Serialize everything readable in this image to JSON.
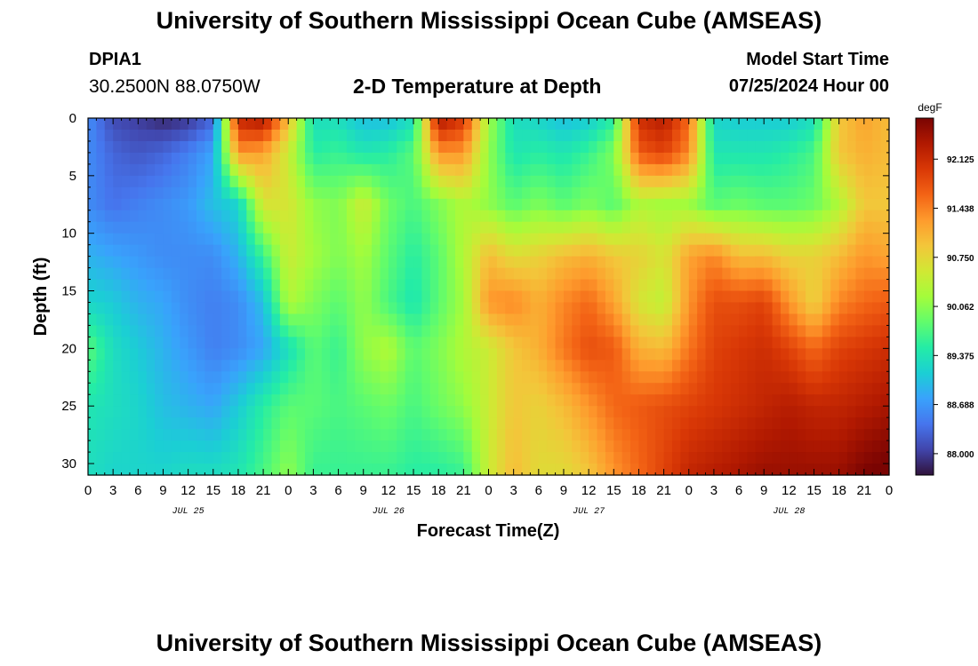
{
  "header": {
    "title": "University of Southern Mississippi Ocean Cube (AMSEAS)",
    "station_id": "DPIA1",
    "station_coords": "30.2500N  88.0750W",
    "subtitle": "2-D Temperature at Depth",
    "model_start_label": "Model Start Time",
    "model_start_value": "07/25/2024 Hour 00"
  },
  "footer": {
    "title": "University of Southern Mississippi Ocean Cube (AMSEAS)"
  },
  "colors": {
    "colormap": [
      "#30123b",
      "#4145ab",
      "#4675ed",
      "#39a2fc",
      "#1bcfd4",
      "#24eca6",
      "#61fc6c",
      "#a4fc3b",
      "#d1e834",
      "#f3c63a",
      "#fe9b2d",
      "#f36315",
      "#d93806",
      "#b11901",
      "#7a0402"
    ]
  },
  "chart_data": {
    "type": "heatmap",
    "title": "2-D Temperature at Depth",
    "xlabel": "Forecast Time(Z)",
    "ylabel": "Depth (ft)",
    "units": "degF",
    "x_hours": [
      0,
      96
    ],
    "ylim": [
      0,
      31
    ],
    "x_ticks": [
      "0",
      "3",
      "6",
      "9",
      "12",
      "15",
      "18",
      "21",
      "0",
      "3",
      "6",
      "9",
      "12",
      "15",
      "18",
      "21",
      "0",
      "3",
      "6",
      "9",
      "12",
      "15",
      "18",
      "21",
      "0",
      "3",
      "6",
      "9",
      "12",
      "15",
      "18",
      "21",
      "0"
    ],
    "date_labels": [
      {
        "label": "JUL 25",
        "hour": 12
      },
      {
        "label": "JUL 26",
        "hour": 36
      },
      {
        "label": "JUL 27",
        "hour": 60
      },
      {
        "label": "JUL 28",
        "hour": 84
      }
    ],
    "y_ticks": [
      0,
      5,
      10,
      15,
      20,
      25,
      30
    ],
    "colorbar": {
      "units": "degF",
      "min": 87.7,
      "max": 92.7,
      "ticks": [
        "92.125",
        "91.438",
        "90.750",
        "90.062",
        "89.375",
        "88.688",
        "88.000"
      ],
      "tick_values": [
        92.125,
        91.438,
        90.75,
        90.062,
        89.375,
        88.688,
        88.0
      ]
    },
    "control_depths": [
      0,
      3,
      7.5,
      12,
      16,
      20,
      25,
      31
    ],
    "control_hours": [
      0,
      3,
      6,
      9,
      12,
      15,
      18,
      21,
      24,
      27,
      30,
      33,
      36,
      39,
      42,
      45,
      48,
      51,
      54,
      57,
      60,
      63,
      66,
      69,
      72,
      75,
      78,
      81,
      84,
      87,
      90,
      93,
      96
    ],
    "values": [
      [
        88.6,
        88.1,
        88.0,
        87.85,
        87.95,
        88.3,
        92.2,
        92.4,
        91.0,
        89.3,
        89.3,
        89.0,
        89.0,
        89.3,
        92.4,
        92.0,
        90.2,
        89.3,
        89.2,
        89.0,
        89.1,
        89.5,
        92.1,
        92.3,
        91.6,
        89.2,
        89.1,
        89.1,
        89.1,
        89.3,
        90.9,
        91.2,
        91.0
      ],
      [
        88.6,
        88.3,
        88.2,
        88.3,
        88.5,
        88.8,
        91.3,
        91.2,
        90.5,
        89.5,
        89.6,
        89.4,
        89.5,
        89.8,
        91.3,
        91.3,
        90.1,
        89.4,
        89.5,
        89.4,
        89.6,
        90.0,
        91.7,
        91.9,
        91.4,
        89.4,
        89.4,
        89.4,
        89.5,
        89.7,
        90.9,
        91.1,
        91.0
      ],
      [
        88.6,
        88.4,
        88.5,
        88.6,
        88.7,
        89.0,
        89.2,
        90.6,
        90.6,
        90.1,
        90.0,
        90.5,
        89.9,
        89.7,
        90.0,
        90.3,
        90.1,
        89.8,
        90.0,
        89.8,
        90.0,
        89.8,
        90.3,
        90.2,
        90.2,
        89.8,
        89.9,
        89.8,
        89.8,
        89.9,
        90.3,
        90.9,
        90.9
      ],
      [
        88.9,
        88.8,
        88.7,
        88.6,
        88.6,
        88.6,
        88.9,
        89.6,
        90.5,
        90.2,
        90.0,
        90.2,
        89.8,
        89.5,
        89.8,
        90.3,
        91.0,
        90.7,
        90.8,
        91.0,
        91.1,
        90.9,
        90.8,
        90.6,
        91.2,
        91.4,
        91.0,
        91.0,
        90.8,
        90.8,
        91.0,
        91.3,
        91.2
      ],
      [
        89.2,
        89.1,
        88.9,
        88.8,
        88.6,
        88.5,
        88.6,
        89.0,
        90.3,
        90.0,
        89.8,
        90.1,
        89.7,
        89.4,
        89.8,
        90.2,
        91.3,
        91.4,
        91.1,
        91.4,
        91.6,
        91.2,
        90.6,
        90.4,
        91.3,
        91.8,
        91.8,
        91.9,
        91.3,
        90.8,
        91.4,
        91.6,
        91.7
      ],
      [
        89.8,
        89.3,
        89.1,
        88.9,
        88.7,
        88.5,
        88.6,
        88.8,
        89.3,
        89.8,
        89.6,
        90.1,
        90.3,
        89.8,
        90.0,
        90.3,
        90.5,
        90.9,
        91.1,
        91.5,
        91.8,
        91.7,
        91.1,
        91.0,
        91.5,
        91.9,
        92.0,
        92.1,
        91.9,
        91.6,
        91.9,
        92.0,
        92.1
      ],
      [
        89.4,
        89.3,
        89.2,
        89.0,
        88.9,
        88.8,
        89.1,
        89.5,
        89.8,
        89.8,
        89.7,
        89.8,
        89.9,
        89.7,
        89.9,
        90.1,
        90.5,
        90.9,
        90.8,
        91.0,
        91.3,
        91.6,
        91.7,
        91.8,
        91.9,
        92.0,
        92.1,
        92.2,
        92.3,
        92.2,
        92.2,
        92.3,
        92.4
      ],
      [
        89.3,
        89.2,
        89.2,
        89.2,
        89.3,
        89.3,
        89.4,
        89.7,
        90.1,
        89.6,
        89.6,
        89.6,
        89.6,
        89.5,
        89.5,
        89.6,
        90.5,
        91.0,
        90.7,
        90.7,
        90.9,
        91.3,
        91.6,
        91.9,
        92.2,
        92.3,
        92.4,
        92.5,
        92.5,
        92.5,
        92.5,
        92.7,
        92.8
      ]
    ]
  },
  "axis_text": {
    "xlabel": "Forecast Time(Z)",
    "ylabel": "Depth (ft)",
    "colorbar_units": "degF"
  }
}
